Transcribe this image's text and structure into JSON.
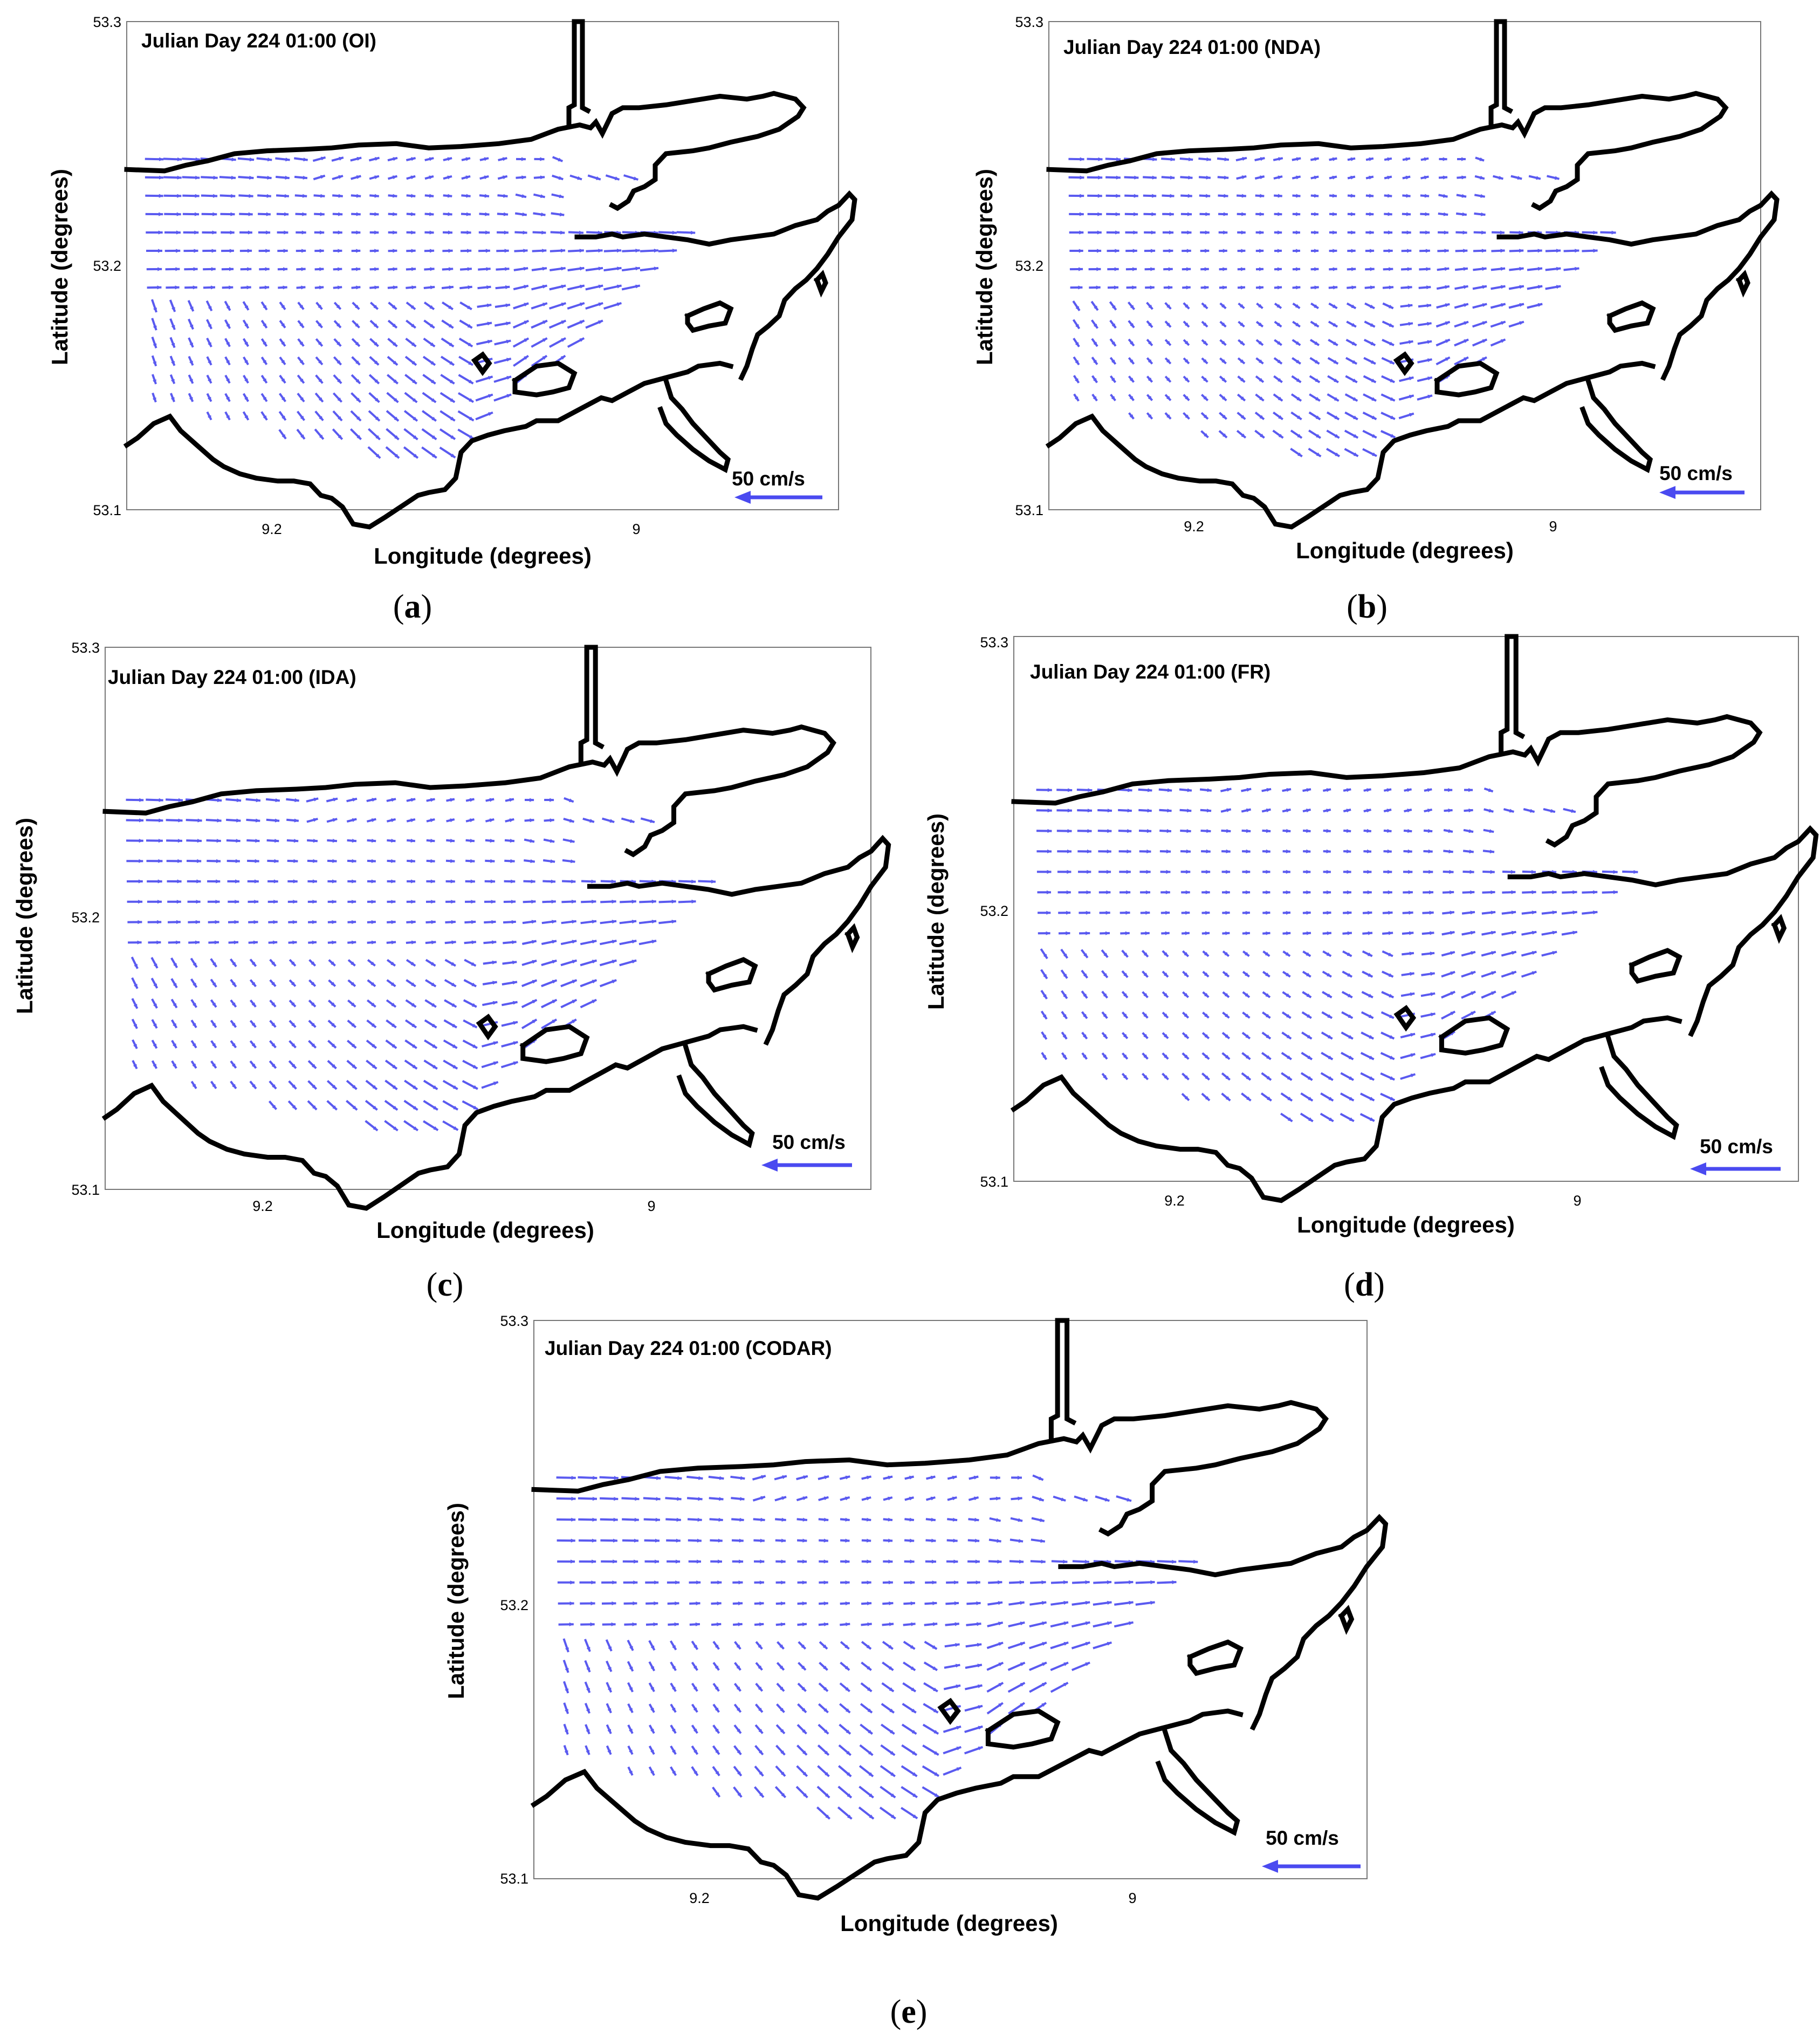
{
  "figure": {
    "panels": [
      {
        "id": "a",
        "title": "Julian Day 224 01:00 (OI)",
        "caption_letter": "a",
        "y_ticks": [
          "53.3",
          "53.2",
          "53.1"
        ],
        "x_ticks": [
          "9.2",
          "9"
        ],
        "xlabel": "Longitude (degrees)",
        "ylabel": "Latitude (degrees)",
        "scale_label": "50 cm/s",
        "field_variant": "OI"
      },
      {
        "id": "b",
        "title": "Julian Day 224 01:00 (NDA)",
        "caption_letter": "b",
        "y_ticks": [
          "53.3",
          "53.2",
          "53.1"
        ],
        "x_ticks": [
          "9.2",
          "9"
        ],
        "xlabel": "Longitude (degrees)",
        "ylabel": "Latitude (degrees)",
        "scale_label": "50 cm/s",
        "field_variant": "NDA"
      },
      {
        "id": "c",
        "title": "Julian Day 224 01:00 (IDA)",
        "caption_letter": "c",
        "y_ticks": [
          "53.3",
          "53.2",
          "53.1"
        ],
        "x_ticks": [
          "9.2",
          "9"
        ],
        "xlabel": "Longitude (degrees)",
        "ylabel": "Latitude (degrees)",
        "scale_label": "50 cm/s",
        "field_variant": "IDA"
      },
      {
        "id": "d",
        "title": "Julian Day 224 01:00 (FR)",
        "caption_letter": "d",
        "y_ticks": [
          "53.3",
          "53.2",
          "53.1"
        ],
        "x_ticks": [
          "9.2",
          "9"
        ],
        "xlabel": "Longitude (degrees)",
        "ylabel": "Latitude (degrees)",
        "scale_label": "50 cm/s",
        "field_variant": "FR"
      },
      {
        "id": "e",
        "title": "Julian Day 224 01:00 (CODAR)",
        "caption_letter": "e",
        "y_ticks": [
          "53.3",
          "53.2",
          "53.1"
        ],
        "x_ticks": [
          "9.2",
          "9"
        ],
        "xlabel": "Longitude (degrees)",
        "ylabel": "Latitude (degrees)",
        "scale_label": "50 cm/s",
        "field_variant": "CODAR"
      }
    ],
    "colors": {
      "vector": "#5a5af0",
      "coastline": "#000000"
    }
  }
}
